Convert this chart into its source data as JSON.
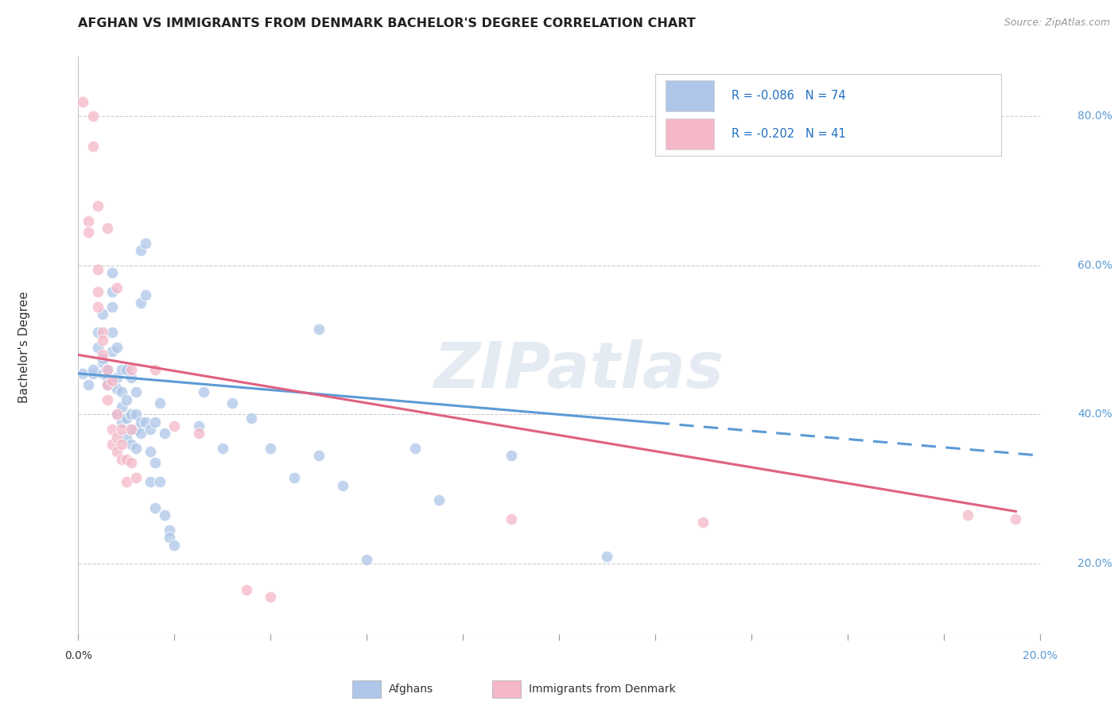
{
  "title": "AFGHAN VS IMMIGRANTS FROM DENMARK BACHELOR'S DEGREE CORRELATION CHART",
  "source": "Source: ZipAtlas.com",
  "ylabel": "Bachelor's Degree",
  "xlim": [
    0.0,
    0.2
  ],
  "ylim": [
    0.1,
    0.88
  ],
  "yticks": [
    0.2,
    0.4,
    0.6,
    0.8
  ],
  "ytick_labels": [
    "20.0%",
    "40.0%",
    "60.0%",
    "80.0%"
  ],
  "background_color": "#ffffff",
  "grid_color": "#cccccc",
  "watermark": "ZIPatlas",
  "legend_blue_R": "R = -0.086",
  "legend_blue_N": "N = 74",
  "legend_pink_R": "R = -0.202",
  "legend_pink_N": "N = 41",
  "blue_color": "#aec6e8",
  "pink_color": "#f4b8c8",
  "line_blue": "#5b9bd5",
  "line_pink": "#e06080",
  "afghans_scatter": [
    [
      0.001,
      0.455
    ],
    [
      0.002,
      0.44
    ],
    [
      0.003,
      0.455
    ],
    [
      0.003,
      0.46
    ],
    [
      0.004,
      0.51
    ],
    [
      0.004,
      0.49
    ],
    [
      0.005,
      0.535
    ],
    [
      0.005,
      0.47
    ],
    [
      0.005,
      0.455
    ],
    [
      0.005,
      0.475
    ],
    [
      0.006,
      0.455
    ],
    [
      0.006,
      0.46
    ],
    [
      0.006,
      0.45
    ],
    [
      0.006,
      0.44
    ],
    [
      0.007,
      0.59
    ],
    [
      0.007,
      0.565
    ],
    [
      0.007,
      0.545
    ],
    [
      0.007,
      0.51
    ],
    [
      0.007,
      0.485
    ],
    [
      0.008,
      0.49
    ],
    [
      0.008,
      0.45
    ],
    [
      0.008,
      0.435
    ],
    [
      0.008,
      0.4
    ],
    [
      0.009,
      0.46
    ],
    [
      0.009,
      0.43
    ],
    [
      0.009,
      0.41
    ],
    [
      0.009,
      0.39
    ],
    [
      0.01,
      0.46
    ],
    [
      0.01,
      0.42
    ],
    [
      0.01,
      0.395
    ],
    [
      0.01,
      0.37
    ],
    [
      0.011,
      0.45
    ],
    [
      0.011,
      0.4
    ],
    [
      0.011,
      0.38
    ],
    [
      0.011,
      0.36
    ],
    [
      0.012,
      0.43
    ],
    [
      0.012,
      0.4
    ],
    [
      0.012,
      0.38
    ],
    [
      0.012,
      0.355
    ],
    [
      0.013,
      0.62
    ],
    [
      0.013,
      0.55
    ],
    [
      0.013,
      0.39
    ],
    [
      0.013,
      0.375
    ],
    [
      0.014,
      0.63
    ],
    [
      0.014,
      0.56
    ],
    [
      0.014,
      0.39
    ],
    [
      0.015,
      0.38
    ],
    [
      0.015,
      0.35
    ],
    [
      0.015,
      0.31
    ],
    [
      0.016,
      0.39
    ],
    [
      0.016,
      0.335
    ],
    [
      0.016,
      0.275
    ],
    [
      0.017,
      0.415
    ],
    [
      0.017,
      0.31
    ],
    [
      0.018,
      0.375
    ],
    [
      0.018,
      0.265
    ],
    [
      0.019,
      0.245
    ],
    [
      0.019,
      0.235
    ],
    [
      0.02,
      0.225
    ],
    [
      0.025,
      0.385
    ],
    [
      0.026,
      0.43
    ],
    [
      0.03,
      0.355
    ],
    [
      0.032,
      0.415
    ],
    [
      0.036,
      0.395
    ],
    [
      0.04,
      0.355
    ],
    [
      0.045,
      0.315
    ],
    [
      0.05,
      0.515
    ],
    [
      0.05,
      0.345
    ],
    [
      0.055,
      0.305
    ],
    [
      0.06,
      0.205
    ],
    [
      0.07,
      0.355
    ],
    [
      0.075,
      0.285
    ],
    [
      0.09,
      0.345
    ],
    [
      0.11,
      0.21
    ]
  ],
  "denmark_scatter": [
    [
      0.001,
      0.82
    ],
    [
      0.002,
      0.66
    ],
    [
      0.002,
      0.645
    ],
    [
      0.003,
      0.8
    ],
    [
      0.003,
      0.76
    ],
    [
      0.004,
      0.68
    ],
    [
      0.004,
      0.595
    ],
    [
      0.004,
      0.565
    ],
    [
      0.004,
      0.545
    ],
    [
      0.005,
      0.51
    ],
    [
      0.005,
      0.5
    ],
    [
      0.005,
      0.48
    ],
    [
      0.006,
      0.65
    ],
    [
      0.006,
      0.46
    ],
    [
      0.006,
      0.44
    ],
    [
      0.006,
      0.42
    ],
    [
      0.007,
      0.445
    ],
    [
      0.007,
      0.38
    ],
    [
      0.007,
      0.36
    ],
    [
      0.008,
      0.57
    ],
    [
      0.008,
      0.4
    ],
    [
      0.008,
      0.37
    ],
    [
      0.008,
      0.35
    ],
    [
      0.009,
      0.38
    ],
    [
      0.009,
      0.36
    ],
    [
      0.009,
      0.34
    ],
    [
      0.01,
      0.34
    ],
    [
      0.01,
      0.31
    ],
    [
      0.011,
      0.46
    ],
    [
      0.011,
      0.38
    ],
    [
      0.011,
      0.335
    ],
    [
      0.012,
      0.315
    ],
    [
      0.016,
      0.46
    ],
    [
      0.02,
      0.385
    ],
    [
      0.025,
      0.375
    ],
    [
      0.035,
      0.165
    ],
    [
      0.04,
      0.155
    ],
    [
      0.09,
      0.26
    ],
    [
      0.13,
      0.255
    ],
    [
      0.185,
      0.265
    ],
    [
      0.195,
      0.26
    ]
  ],
  "trendline_blue_x0": 0.0,
  "trendline_blue_y0": 0.455,
  "trendline_blue_x1": 0.2,
  "trendline_blue_y1": 0.345,
  "trendline_blue_solid_end": 0.12,
  "trendline_pink_x0": 0.0,
  "trendline_pink_y0": 0.48,
  "trendline_pink_x1": 0.195,
  "trendline_pink_y1": 0.27
}
